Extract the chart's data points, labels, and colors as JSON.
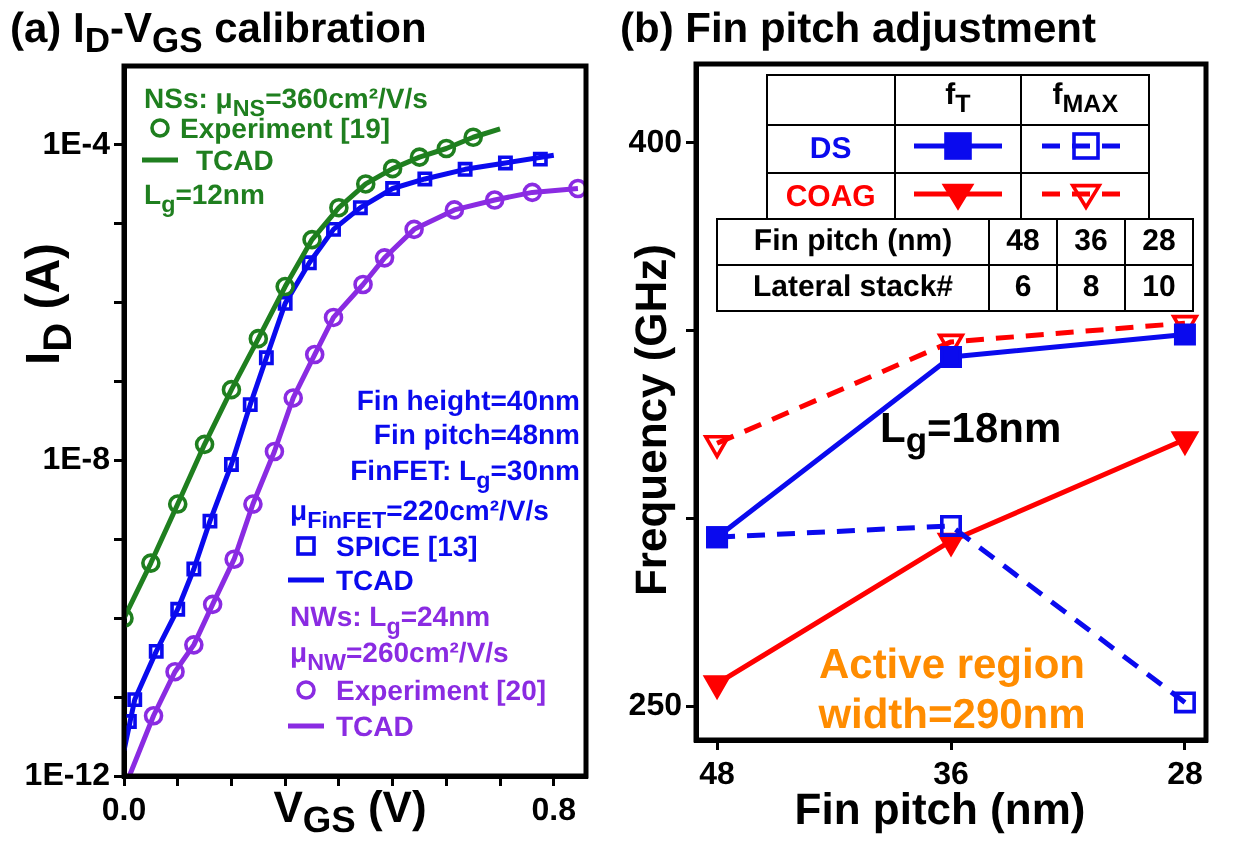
{
  "chart_data": [
    {
      "type": "line",
      "title": "(a) I$_{D}$-V$_{GS}$ calibration",
      "xlabel": "V$_{GS}$ (V)",
      "ylabel": "I$_{D}$ (A)",
      "log": "y",
      "grid": false,
      "legend": "left",
      "xlim": [
        0,
        0.86
      ],
      "xticks": [
        {
          "value": 0,
          "label": "0.0"
        },
        {
          "value": 0.1,
          "label": null
        },
        {
          "value": 0.2,
          "label": null
        },
        {
          "value": 0.3,
          "label": null
        },
        {
          "value": 0.4,
          "label": null
        },
        {
          "value": 0.5,
          "label": null
        },
        {
          "value": 0.6,
          "label": null
        },
        {
          "value": 0.7,
          "label": null
        },
        0.8
      ],
      "ylim": [
        1e-12,
        0.001
      ],
      "yticks": [
        {
          "value": 1e-12,
          "label": "1E-12"
        },
        {
          "value": 1e-11,
          "label": null
        },
        {
          "value": 1e-10,
          "label": null
        },
        {
          "value": 1e-09,
          "label": null
        },
        {
          "value": 1e-08,
          "label": "1E-8"
        },
        {
          "value": 1e-07,
          "label": null
        },
        {
          "value": 1e-06,
          "label": null
        },
        {
          "value": 1e-05,
          "label": null
        },
        {
          "value": 0.0001,
          "label": "1E-4"
        }
      ],
      "annotations": [
        "NSs: μ$_{NS}$=360cm²/V/s",
        "L$_{g}$=12nm",
        "Fin height=40nm",
        "Fin pitch=48nm",
        "FinFET: L$_{g}$=30nm",
        "μ$_{FinFET}$=220cm²/V/s",
        "NWs: L$_{g}$=24nm",
        "μ$_{NW}$=260cm²/V/s"
      ],
      "series": [
        {
          "name": "Experiment [19]",
          "type": "scatter",
          "marker": "circle",
          "color": "#1f7f1f",
          "x": [
            0,
            0.05,
            0.1,
            0.15,
            0.2,
            0.25,
            0.3,
            0.35,
            0.4,
            0.45,
            0.5,
            0.55,
            0.6,
            0.65
          ],
          "values": [
            1e-10,
            5e-10,
            2.8e-09,
            1.6e-08,
            7.9e-08,
            3.5e-07,
            1.6e-06,
            6.3e-06,
            1.6e-05,
            3.2e-05,
            5e-05,
            7e-05,
            9e-05,
            0.000125
          ]
        },
        {
          "name": "TCAD",
          "type": "line",
          "marker": "none",
          "color": "#1f7f1f",
          "x": [
            0,
            0.05,
            0.1,
            0.15,
            0.2,
            0.25,
            0.3,
            0.35,
            0.4,
            0.45,
            0.5,
            0.55,
            0.6,
            0.65,
            0.7
          ],
          "values": [
            1e-10,
            5e-10,
            2.8e-09,
            1.6e-08,
            7.9e-08,
            3.5e-07,
            1.6e-06,
            6.3e-06,
            1.6e-05,
            3.2e-05,
            5e-05,
            7e-05,
            9e-05,
            0.000125,
            0.00016
          ]
        },
        {
          "name": "SPICE [13]",
          "type": "scatter",
          "marker": "square",
          "color": "#0a0aee",
          "x": [
            0.01,
            0.02,
            0.06,
            0.1,
            0.13,
            0.16,
            0.2,
            0.235,
            0.265,
            0.3,
            0.345,
            0.39,
            0.44,
            0.5,
            0.56,
            0.635,
            0.71,
            0.775
          ],
          "values": [
            4.9e-12,
            9.3e-12,
            3.8e-11,
            1.3e-10,
            4.2e-10,
            1.7e-09,
            8.9e-09,
            5.1e-08,
            2e-07,
            9.8e-07,
            3.2e-06,
            8.5e-06,
            1.6e-05,
            2.8e-05,
            3.7e-05,
            4.9e-05,
            5.9e-05,
            6.6e-05
          ]
        },
        {
          "name": "TCAD",
          "type": "line",
          "marker": "none",
          "color": "#0a0aee",
          "x": [
            0,
            0.02,
            0.06,
            0.1,
            0.13,
            0.16,
            0.2,
            0.235,
            0.265,
            0.3,
            0.345,
            0.39,
            0.44,
            0.5,
            0.56,
            0.635,
            0.71,
            0.8
          ],
          "values": [
            2.1e-12,
            9.3e-12,
            3.8e-11,
            1.3e-10,
            4.2e-10,
            1.7e-09,
            8.9e-09,
            5.1e-08,
            2e-07,
            9.8e-07,
            3.2e-06,
            8.5e-06,
            1.6e-05,
            2.8e-05,
            3.7e-05,
            4.9e-05,
            5.9e-05,
            7.4e-05
          ]
        },
        {
          "name": "Experiment [20]",
          "type": "scatter",
          "marker": "circle",
          "color": "#8a2be2",
          "x": [
            0.055,
            0.095,
            0.13,
            0.165,
            0.205,
            0.24,
            0.28,
            0.315,
            0.355,
            0.39,
            0.445,
            0.485,
            0.54,
            0.615,
            0.69,
            0.76,
            0.845
          ],
          "values": [
            5.8e-12,
            2.1e-11,
            4.6e-11,
            1.5e-10,
            5.6e-10,
            2.8e-09,
            1.3e-08,
            6.2e-08,
            2.2e-07,
            6.5e-07,
            1.7e-06,
            3.7e-06,
            8.5e-06,
            1.5e-05,
            2e-05,
            2.5e-05,
            2.8e-05
          ]
        },
        {
          "name": "TCAD",
          "type": "line",
          "marker": "none",
          "color": "#8a2be2",
          "x": [
            0.01,
            0.055,
            0.095,
            0.13,
            0.165,
            0.205,
            0.24,
            0.28,
            0.315,
            0.355,
            0.39,
            0.445,
            0.485,
            0.54,
            0.615,
            0.69,
            0.76,
            0.845
          ],
          "values": [
            1e-12,
            5.8e-12,
            2.1e-11,
            4.6e-11,
            1.5e-10,
            5.6e-10,
            2.8e-09,
            1.3e-08,
            6.2e-08,
            2.2e-07,
            6.5e-07,
            1.7e-06,
            3.7e-06,
            8.5e-06,
            1.5e-05,
            2e-05,
            2.5e-05,
            2.8e-05
          ]
        }
      ]
    },
    {
      "type": "line",
      "title": "(b) Fin pitch adjustment",
      "xlabel": "Fin pitch (nm)",
      "ylabel": "Frequency (GHz)",
      "grid": false,
      "legend": "top",
      "categories": [
        "48",
        "36",
        "28"
      ],
      "ylim": [
        241,
        421
      ],
      "yticks": [
        250,
        {
          "value": 300,
          "label": null
        },
        {
          "value": 350,
          "label": null
        },
        400
      ],
      "annotations": [
        "f$_{T}$",
        "f$_{MAX}$",
        "DS",
        "COAG",
        "Fin pitch (nm)",
        "48",
        "36",
        "28",
        "Lateral stack#",
        "6",
        "8",
        "10",
        "L$_{g}$=18nm",
        "Active region width=290nm"
      ],
      "series": [
        {
          "color": "#0a0aee",
          "marker": "square",
          "line_style": "solid",
          "values": [
            295,
            343,
            349
          ]
        },
        {
          "color": "#0a0aee",
          "marker": "square",
          "line_style": "dashed",
          "values": [
            295,
            298,
            251
          ]
        },
        {
          "color": "#ff0000",
          "marker": "triangle",
          "line_style": "solid",
          "values": [
            256,
            294,
            321
          ]
        },
        {
          "color": "#ff0000",
          "marker": "triangle",
          "line_style": "dashed",
          "values": [
            320,
            347,
            352
          ]
        }
      ]
    }
  ]
}
